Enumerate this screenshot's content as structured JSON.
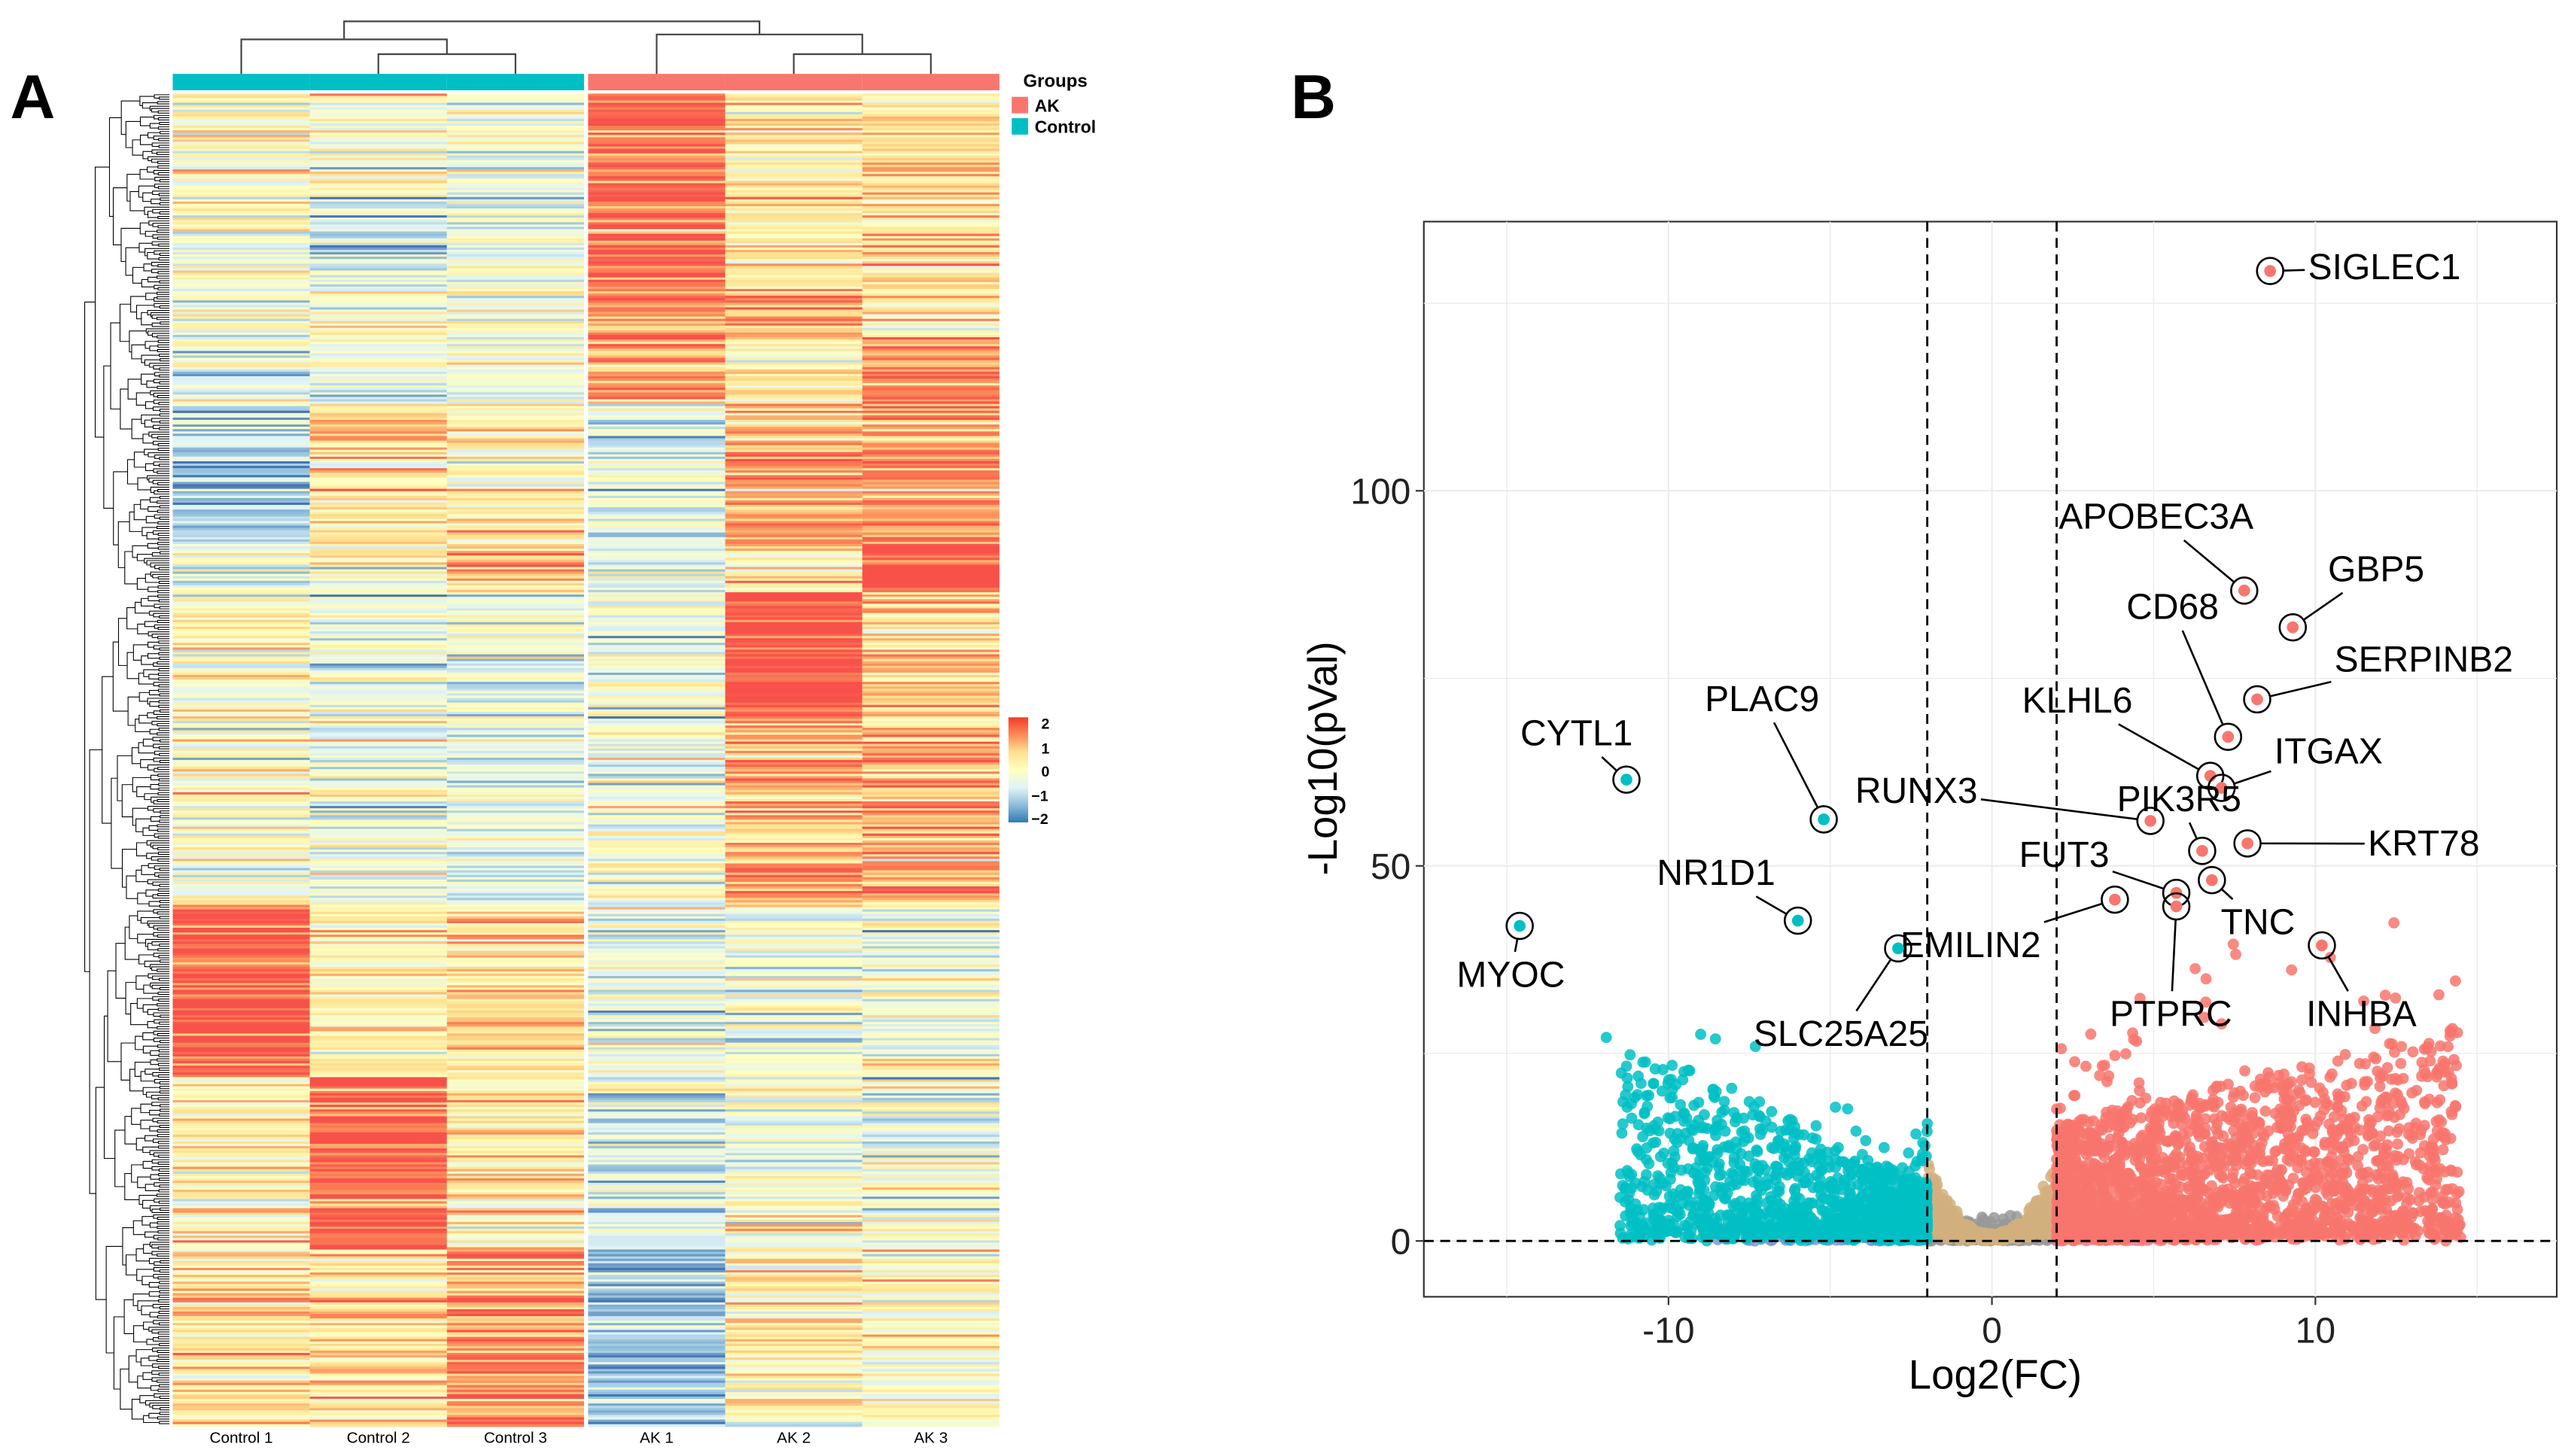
{
  "panels": {
    "a_label": "A",
    "b_label": "B"
  },
  "chart_data": [
    {
      "type": "heatmap",
      "columns": [
        "Control 1",
        "Control 2",
        "Control 3",
        "AK 1",
        "AK 2",
        "AK 3"
      ],
      "column_groups": [
        "Control",
        "Control",
        "Control",
        "AK",
        "AK",
        "AK"
      ],
      "legend": {
        "title": "Groups",
        "entries": [
          {
            "name": "AK",
            "color": "#F8766D"
          },
          {
            "name": "Control",
            "color": "#00BFC4"
          }
        ]
      },
      "color_key": {
        "ticks": [
          "2",
          "1",
          "0",
          "−1",
          "−2"
        ],
        "range": [
          -2,
          2
        ],
        "colors": [
          "#4575B4",
          "#91BFDB",
          "#E0F3F8",
          "#FFFFBF",
          "#FEE090",
          "#FC8D59",
          "#F8514A"
        ]
      },
      "row_dendrogram": true,
      "column_dendrogram": true
    },
    {
      "type": "scatter",
      "xlabel": "Log2(FC)",
      "ylabel": "-Log10(pVal)",
      "xlim": [
        -17.6,
        17.5
      ],
      "ylim": [
        -7.4,
        135.9
      ],
      "xticks": [
        "-10",
        "0",
        "10"
      ],
      "xtick_values": [
        -10,
        0,
        10
      ],
      "yticks": [
        "0",
        "50",
        "100"
      ],
      "ytick_values": [
        0,
        50,
        100
      ],
      "grid": true,
      "thresholds": {
        "log2fc": [
          -2,
          2
        ],
        "neglog10p": 0
      },
      "colors": {
        "up": "#F8766D",
        "down": "#00BFC4",
        "fc_not_sig": "#D2B07E",
        "not_sig": "#999999"
      },
      "labeled_genes": [
        {
          "name": "SIGLEC1",
          "x": 8.6,
          "y": 129.3,
          "dir": "up"
        },
        {
          "name": "APOBEC3A",
          "x": 7.8,
          "y": 86.7,
          "dir": "up"
        },
        {
          "name": "GBP5",
          "x": 9.3,
          "y": 81.8,
          "dir": "up"
        },
        {
          "name": "SERPINB2",
          "x": 8.2,
          "y": 72.2,
          "dir": "up"
        },
        {
          "name": "CD68",
          "x": 7.3,
          "y": 67.2,
          "dir": "up"
        },
        {
          "name": "KLHL6",
          "x": 6.75,
          "y": 62.0,
          "dir": "up"
        },
        {
          "name": "ITGAX",
          "x": 7.1,
          "y": 60.4,
          "dir": "up"
        },
        {
          "name": "RUNX3",
          "x": 4.9,
          "y": 56.0,
          "dir": "up"
        },
        {
          "name": "PIK3R5",
          "x": 6.5,
          "y": 52.0,
          "dir": "up"
        },
        {
          "name": "KRT78",
          "x": 7.9,
          "y": 53.0,
          "dir": "up"
        },
        {
          "name": "FUT3",
          "x": 5.7,
          "y": 46.4,
          "dir": "up"
        },
        {
          "name": "TNC",
          "x": 6.8,
          "y": 48.1,
          "dir": "up"
        },
        {
          "name": "PTPRC",
          "x": 5.7,
          "y": 44.6,
          "dir": "up"
        },
        {
          "name": "EMILIN2",
          "x": 3.8,
          "y": 45.5,
          "dir": "up"
        },
        {
          "name": "INHBA",
          "x": 10.2,
          "y": 39.4,
          "dir": "up"
        },
        {
          "name": "CYTL1",
          "x": -11.3,
          "y": 61.5,
          "dir": "down"
        },
        {
          "name": "PLAC9",
          "x": -5.2,
          "y": 56.2,
          "dir": "down"
        },
        {
          "name": "NR1D1",
          "x": -6.0,
          "y": 42.7,
          "dir": "down"
        },
        {
          "name": "MYOC",
          "x": -14.6,
          "y": 42.0,
          "dir": "down"
        },
        {
          "name": "SLC25A25",
          "x": -2.9,
          "y": 39.0,
          "dir": "down"
        }
      ]
    }
  ]
}
